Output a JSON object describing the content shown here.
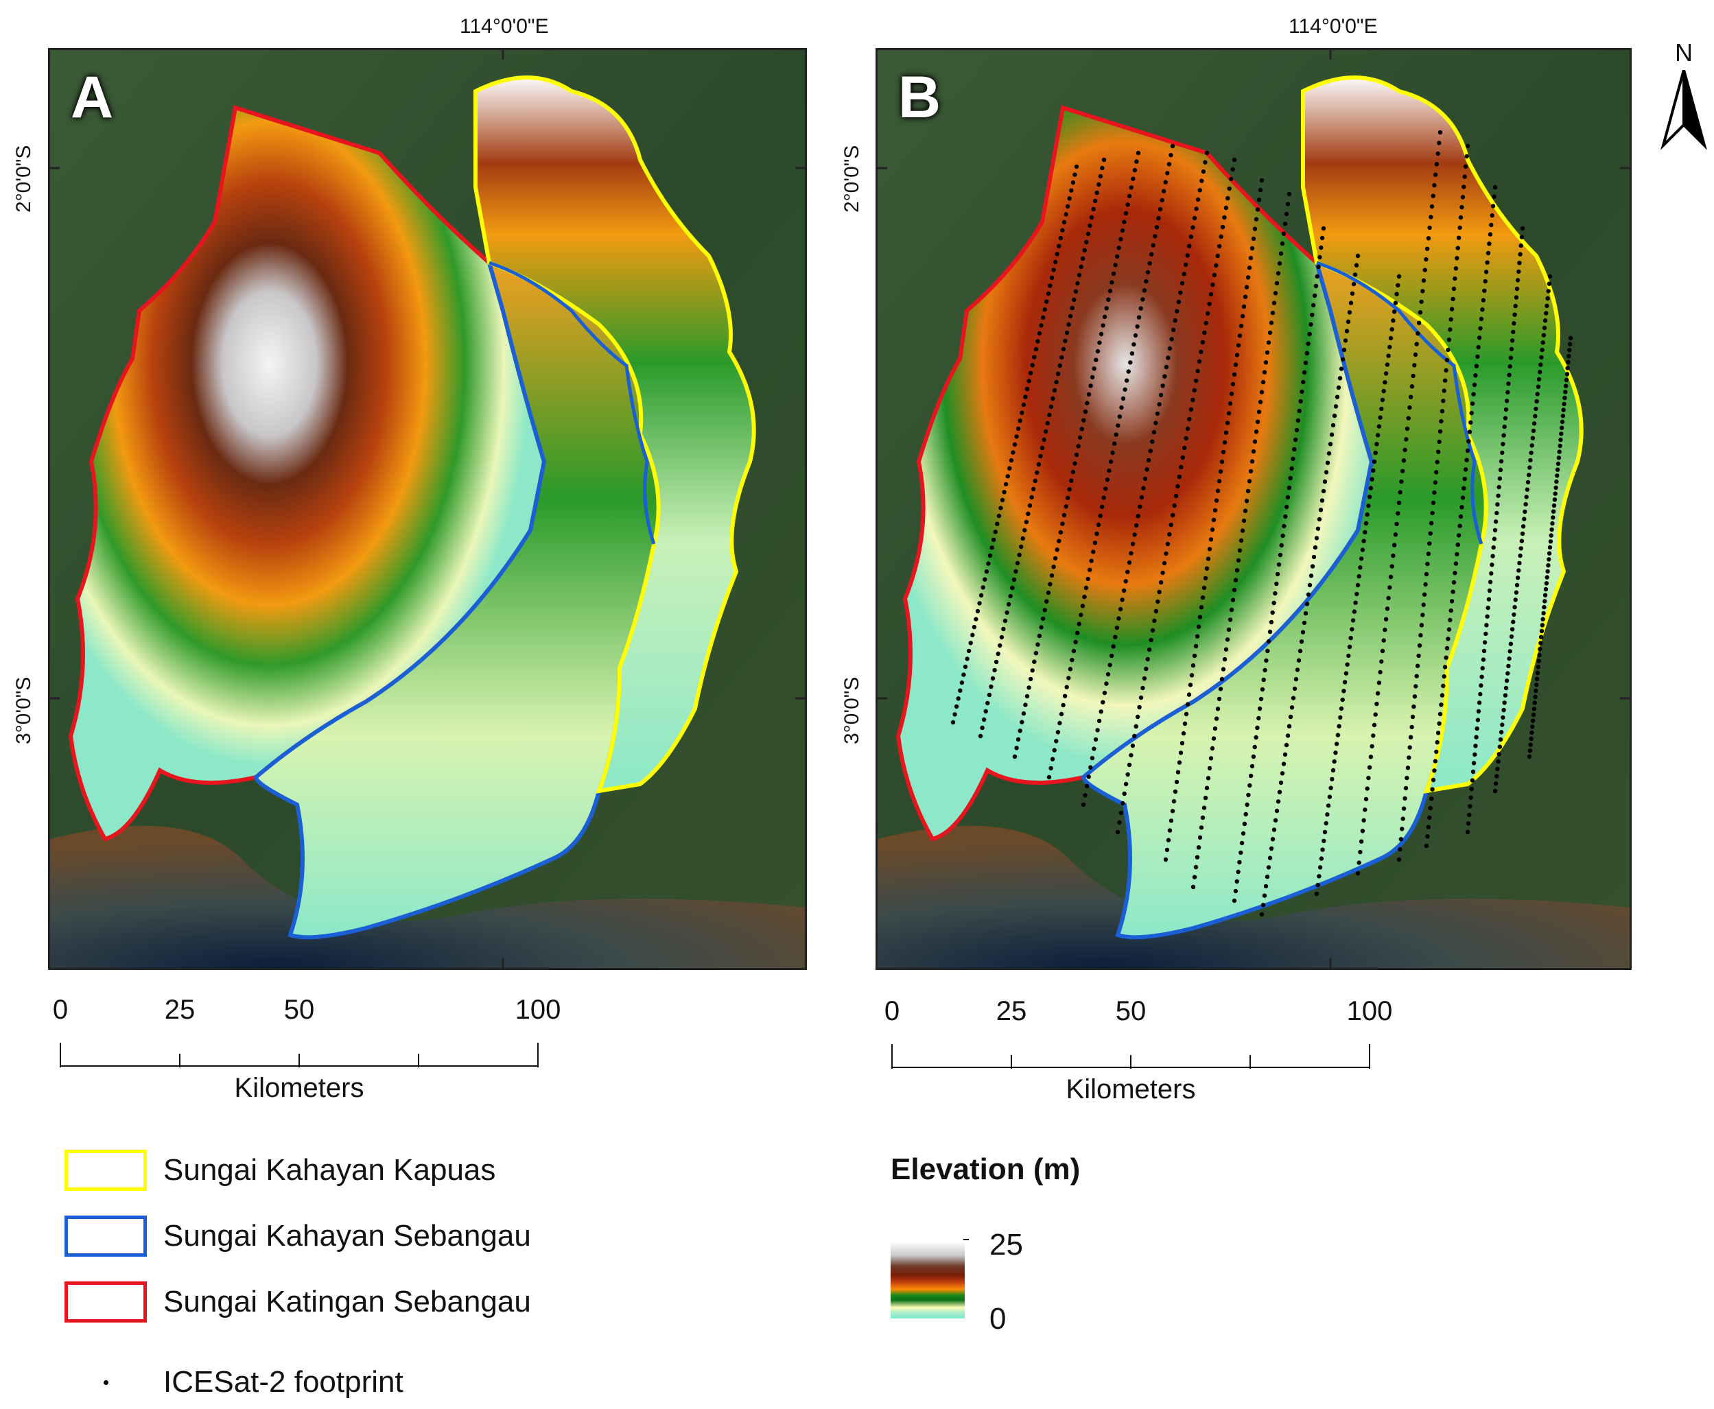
{
  "panels": [
    {
      "id": "A",
      "letter": "A",
      "lon_label": "114°0'0\"E",
      "lat_top": "2°0'0\"S",
      "lat_bottom": "3°0'0\"S",
      "show_footprints": false
    },
    {
      "id": "B",
      "letter": "B",
      "lon_label": "114°0'0\"E",
      "lat_top": "2°0'0\"S",
      "lat_bottom": "3°0'0\"S",
      "show_footprints": true
    }
  ],
  "scale_bar": {
    "ticks": [
      "0",
      "25",
      "50",
      "100"
    ],
    "unit": "Kilometers"
  },
  "north_arrow": {
    "label": "N"
  },
  "legend": {
    "boundaries": [
      {
        "label": "Sungai Kahayan Kapuas",
        "color": "#ffff00"
      },
      {
        "label": "Sungai Kahayan Sebangau",
        "color": "#1a5fd6"
      },
      {
        "label": "Sungai Katingan Sebangau",
        "color": "#e8141e"
      }
    ],
    "footprint_label": "ICESat-2 footprint"
  },
  "elevation": {
    "title": "Elevation (m)",
    "max_label": "25",
    "min_label": "0"
  },
  "colors": {
    "katingan": "#e8141e",
    "sebangau": "#1a5fd6",
    "kapuas": "#ffff00",
    "footprint": "#000000"
  }
}
